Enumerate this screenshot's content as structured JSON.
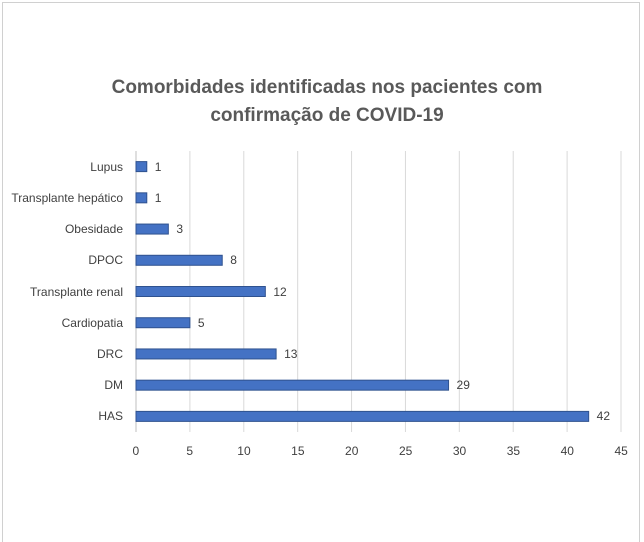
{
  "chart_data": {
    "type": "bar",
    "orientation": "horizontal",
    "title": "Comorbidades identificadas nos pacientes com confirmação de COVID-19",
    "categories": [
      "Lupus",
      "Transplante hepático",
      "Obesidade",
      "DPOC",
      "Transplante renal",
      "Cardiopatia",
      "DRC",
      "DM",
      "HAS"
    ],
    "values": [
      1,
      1,
      3,
      8,
      12,
      5,
      13,
      29,
      42
    ],
    "color": "#4472c4",
    "xlim": [
      0,
      45
    ],
    "xticks": [
      0,
      5,
      10,
      15,
      20,
      25,
      30,
      35,
      40,
      45
    ],
    "grid": true
  }
}
